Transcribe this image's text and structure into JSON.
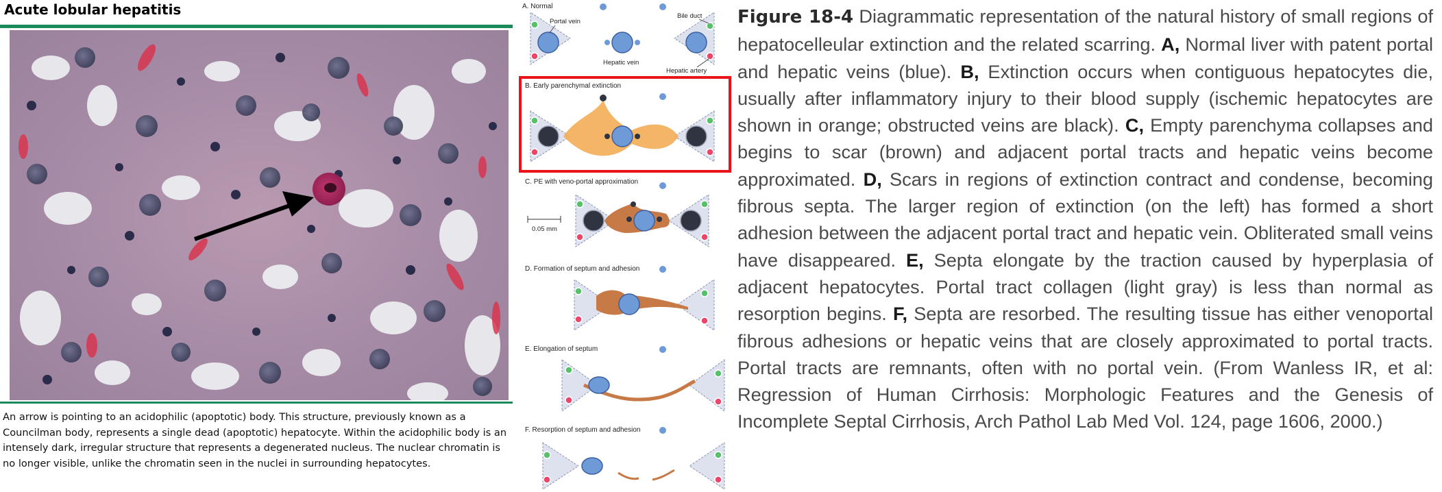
{
  "left": {
    "title": "Acute lobular hepatitis",
    "caption": "An arrow is pointing to an acidophilic (apoptotic) body. This structure, previously known as a Councilman body, represents a single dead (apoptotic) hepatocyte. Within the acidophilic body is an intensely dark, irregular structure that represents a degenerated nucleus. The nuclear chromatin is no longer visible, unlike the chromatin seen in the nuclei in surrounding hepatocytes."
  },
  "diagram": {
    "panel_a": "A. Normal",
    "label_portal_vein": "Portal vein",
    "label_bile_duct": "Bile duct",
    "label_hepatic_vein": "Hepatic vein",
    "label_hepatic_artery": "Hepatic artery",
    "panel_b": "B. Early parenchymal extinction",
    "panel_c": "C. PE with veno-portal approximation",
    "scale": "0.05 mm",
    "panel_d": "D. Formation of septum and adhesion",
    "panel_e": "E. Elongation of septum",
    "panel_f": "F. Resorption of septum and adhesion",
    "highlight_color": "#e8141a",
    "colors": {
      "vein_blue": "#6f9ad8",
      "ischemic_orange": "#f3ad55",
      "scar_brown": "#c77a45",
      "portal_gray": "#dde2ee",
      "green_dot": "#59c06a",
      "red_dot": "#e8466a",
      "obstructed": "#2f3440"
    }
  },
  "figure": {
    "number": "Figure 18-4",
    "intro": " Diagrammatic representation of the natural history of small regions of hepatocelleular extinction and the related scarring. ",
    "a_label": "A,",
    "a_text": " Normal liver with patent portal and hepatic veins (blue). ",
    "b_label": "B,",
    "b_text": " Extinction occurs when contiguous hepatocytes die, usually after inflammatory injury to their blood supply (ischemic hepatocytes are shown in orange; obstructed veins are black). ",
    "c_label": "C,",
    "c_text": " Empty parenchyma collapses and begins to scar (brown) and adjacent portal tracts and hepatic veins become approximated. ",
    "d_label": "D,",
    "d_text": " Scars in regions of extinction contract and condense, becoming fibrous septa. The larger region of extinction (on the left) has formed a short adhesion between the adjacent portal tract and hepatic vein. Obliterated small veins have disappeared. ",
    "e_label": "E,",
    "e_text": " Septa elongate by the traction caused by hyperplasia of adjacent hepatocytes. Portal tract collagen (light gray) is less than normal as resorption begins. ",
    "f_label": "F,",
    "f_text": " Septa are resorbed. The resulting tissue has either venoportal fibrous adhesions or hepatic veins that are closely approximated to portal tracts. Portal tracts are remnants, often with no portal vein. (From Wanless IR, et al: Regression of Human Cirrhosis: Morphologic Features and the Genesis of Incomplete Septal Cirrhosis, Arch Pathol Lab Med Vol. 124, page 1606, 2000.)"
  }
}
